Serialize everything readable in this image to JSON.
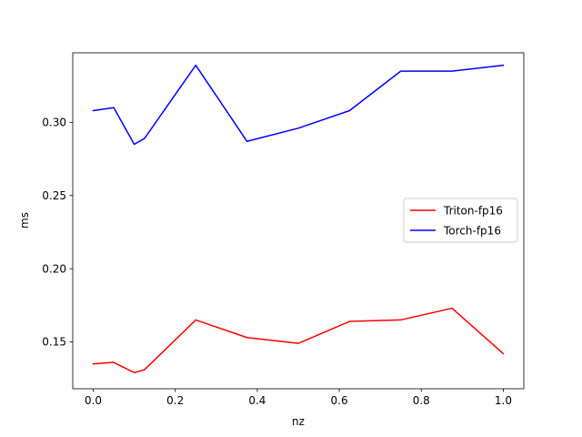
{
  "chart_data": {
    "type": "line",
    "xlabel": "nz",
    "ylabel": "ms",
    "xlim": [
      -0.05,
      1.05
    ],
    "ylim": [
      0.118,
      0.3475
    ],
    "x_ticks": [
      0.0,
      0.2,
      0.4,
      0.6,
      0.8,
      1.0
    ],
    "x_tick_labels": [
      "0.0",
      "0.2",
      "0.4",
      "0.6",
      "0.8",
      "1.0"
    ],
    "y_ticks": [
      0.15,
      0.2,
      0.25,
      0.3
    ],
    "y_tick_labels": [
      "0.15",
      "0.20",
      "0.25",
      "0.30"
    ],
    "grid": false,
    "legend_position": "center-right",
    "series": [
      {
        "name": "Triton-fp16",
        "color": "#ff0000",
        "x": [
          0.0,
          0.05,
          0.1,
          0.125,
          0.25,
          0.375,
          0.5,
          0.625,
          0.75,
          0.875,
          1.0
        ],
        "y": [
          0.135,
          0.136,
          0.129,
          0.131,
          0.165,
          0.153,
          0.149,
          0.164,
          0.165,
          0.173,
          0.142
        ]
      },
      {
        "name": "Torch-fp16",
        "color": "#0000ff",
        "x": [
          0.0,
          0.05,
          0.1,
          0.125,
          0.25,
          0.375,
          0.5,
          0.625,
          0.75,
          0.875,
          1.0
        ],
        "y": [
          0.308,
          0.31,
          0.285,
          0.289,
          0.339,
          0.287,
          0.296,
          0.308,
          0.335,
          0.335,
          0.339
        ]
      }
    ]
  }
}
